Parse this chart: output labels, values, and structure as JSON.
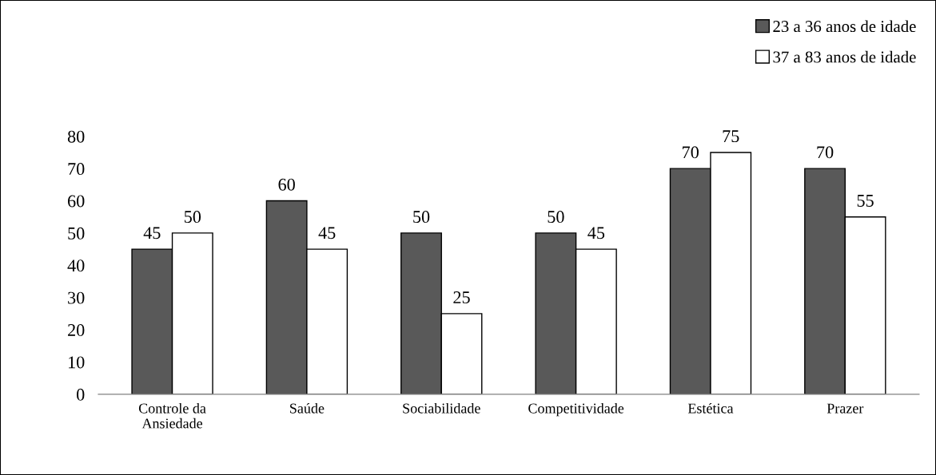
{
  "chart_data": {
    "type": "bar",
    "categories": [
      "Controle da\nAnsiedade",
      "Saúde",
      "Sociabilidade",
      "Competitividade",
      "Estética",
      "Prazer"
    ],
    "series": [
      {
        "name": "23 a 36 anos de idade",
        "color": "#595959",
        "values": [
          45,
          60,
          50,
          50,
          70,
          70
        ]
      },
      {
        "name": "37 a 83 anos de idade",
        "color": "#ffffff",
        "values": [
          50,
          45,
          25,
          45,
          75,
          55
        ]
      }
    ],
    "ylim": [
      0,
      80
    ],
    "yticks": [
      0,
      10,
      20,
      30,
      40,
      50,
      60,
      70,
      80
    ],
    "data_labels": true,
    "grid": false,
    "legend": "top right"
  }
}
